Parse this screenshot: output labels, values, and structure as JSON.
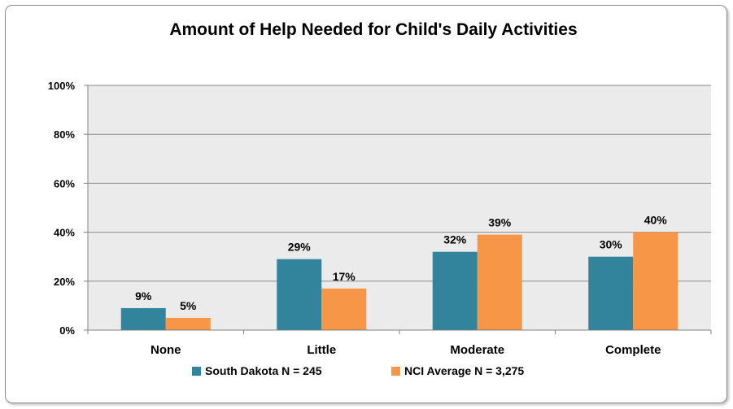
{
  "chart_data": {
    "type": "bar",
    "title": "Amount of Help Needed for Child's Daily Activities",
    "categories": [
      "None",
      "Little",
      "Moderate",
      "Complete"
    ],
    "series": [
      {
        "name": "South Dakota N = 245",
        "values": [
          9,
          29,
          32,
          30
        ],
        "labels": [
          "9%",
          "29%",
          "32%",
          "30%"
        ],
        "color": "#31849b"
      },
      {
        "name": "NCI Average N = 3,275",
        "values": [
          5,
          17,
          39,
          40
        ],
        "labels": [
          "5%",
          "17%",
          "39%",
          "40%"
        ],
        "color": "#f79646"
      }
    ],
    "ylim": [
      0,
      100
    ],
    "yticks": [
      "0%",
      "20%",
      "40%",
      "60%",
      "80%",
      "100%"
    ],
    "ytick_values": [
      0,
      20,
      40,
      60,
      80,
      100
    ],
    "grid": true,
    "legend_position": "bottom",
    "plot_background": "#ebebeb"
  }
}
